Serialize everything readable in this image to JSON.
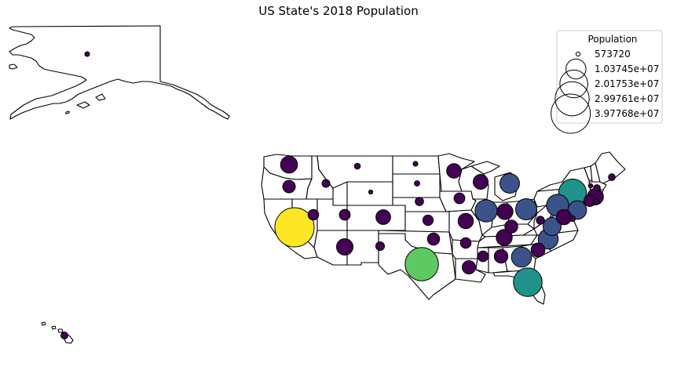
{
  "chart_data": {
    "type": "bubble-map",
    "title": "US State's 2018 Population",
    "legend": {
      "title": "Population",
      "placement": "top-right",
      "entries": [
        "573720",
        "1.03745e+07",
        "2.01753e+07",
        "2.99761e+07",
        "3.97768e+07"
      ],
      "entry_values": [
        573720,
        10374500,
        20175300,
        29976100,
        39776800
      ]
    },
    "size_range": [
      573720,
      39776800
    ],
    "colormap": "viridis",
    "states": [
      {
        "name": "California",
        "population": 39776830
      },
      {
        "name": "Texas",
        "population": 28704330
      },
      {
        "name": "Florida",
        "population": 21312211
      },
      {
        "name": "New York",
        "population": 19862512
      },
      {
        "name": "Pennsylvania",
        "population": 12823989
      },
      {
        "name": "Illinois",
        "population": 12768320
      },
      {
        "name": "Ohio",
        "population": 11694664
      },
      {
        "name": "Georgia",
        "population": 10545138
      },
      {
        "name": "North Carolina",
        "population": 10390149
      },
      {
        "name": "Michigan",
        "population": 9991177
      },
      {
        "name": "New Jersey",
        "population": 9032872
      },
      {
        "name": "Virginia",
        "population": 8525660
      },
      {
        "name": "Washington",
        "population": 7530552
      },
      {
        "name": "Arizona",
        "population": 7123898
      },
      {
        "name": "Massachusetts",
        "population": 6895917
      },
      {
        "name": "Tennessee",
        "population": 6782564
      },
      {
        "name": "Indiana",
        "population": 6699629
      },
      {
        "name": "Missouri",
        "population": 6135888
      },
      {
        "name": "Maryland",
        "population": 6079602
      },
      {
        "name": "Wisconsin",
        "population": 5818049
      },
      {
        "name": "Colorado",
        "population": 5684203
      },
      {
        "name": "Minnesota",
        "population": 5628162
      },
      {
        "name": "South Carolina",
        "population": 5088916
      },
      {
        "name": "Alabama",
        "population": 4887681
      },
      {
        "name": "Louisiana",
        "population": 4682509
      },
      {
        "name": "Kentucky",
        "population": 4472265
      },
      {
        "name": "Oregon",
        "population": 4190713
      },
      {
        "name": "Oklahoma",
        "population": 3940235
      },
      {
        "name": "Connecticut",
        "population": 3588683
      },
      {
        "name": "Iowa",
        "population": 3160553
      },
      {
        "name": "Utah",
        "population": 3159345
      },
      {
        "name": "Nevada",
        "population": 3056824
      },
      {
        "name": "Arkansas",
        "population": 3020327
      },
      {
        "name": "Mississippi",
        "population": 2982785
      },
      {
        "name": "Kansas",
        "population": 2918515
      },
      {
        "name": "New Mexico",
        "population": 2090708
      },
      {
        "name": "Nebraska",
        "population": 1932549
      },
      {
        "name": "West Virginia",
        "population": 1805953
      },
      {
        "name": "Idaho",
        "population": 1753860
      },
      {
        "name": "Hawaii",
        "population": 1420593
      },
      {
        "name": "New Hampshire",
        "population": 1356458
      },
      {
        "name": "Maine",
        "population": 1341582
      },
      {
        "name": "Montana",
        "population": 1062330
      },
      {
        "name": "Rhode Island",
        "population": 1058287
      },
      {
        "name": "Delaware",
        "population": 971180
      },
      {
        "name": "South Dakota",
        "population": 877790
      },
      {
        "name": "North Dakota",
        "population": 755238
      },
      {
        "name": "Alaska",
        "population": 735139
      },
      {
        "name": "Vermont",
        "population": 624358
      },
      {
        "name": "Wyoming",
        "population": 573720
      }
    ]
  }
}
